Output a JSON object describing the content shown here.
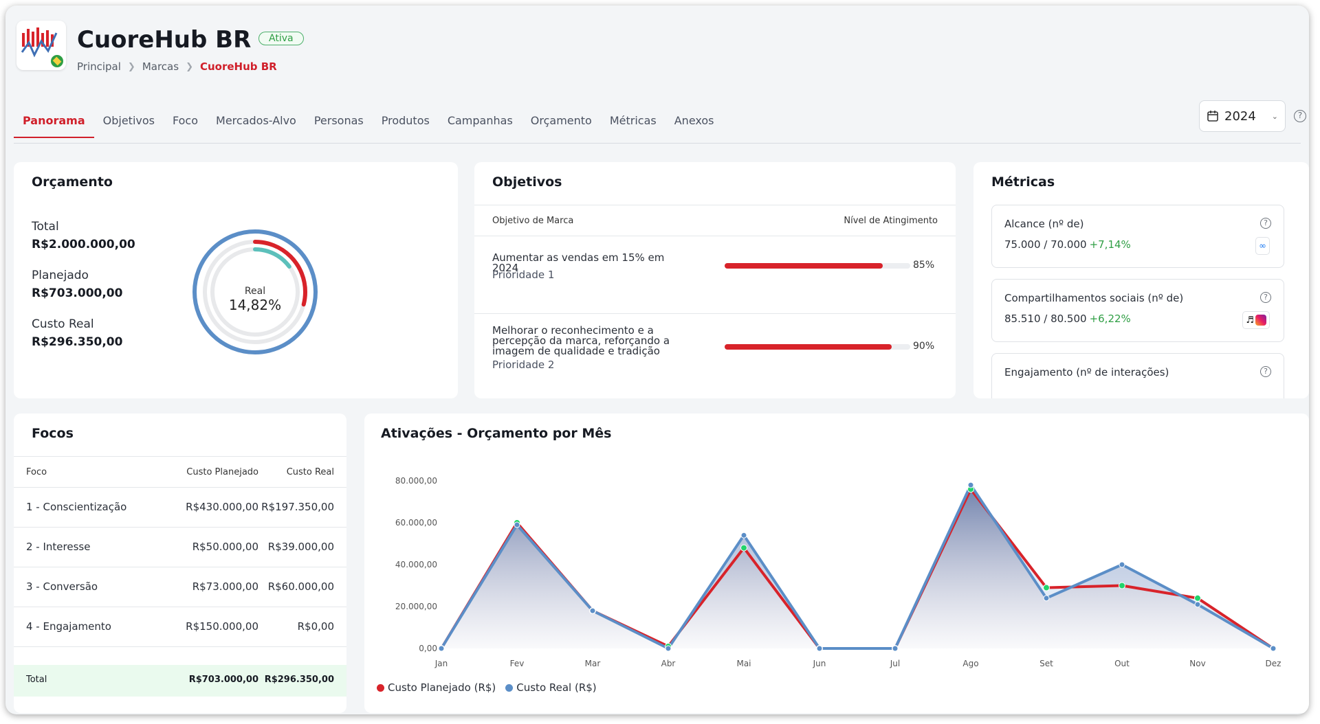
{
  "header": {
    "title": "CuoreHub BR",
    "status": "Ativa",
    "breadcrumb": [
      "Principal",
      "Marcas",
      "CuoreHub BR"
    ]
  },
  "tabs": [
    "Panorama",
    "Objetivos",
    "Foco",
    "Mercados-Alvo",
    "Personas",
    "Produtos",
    "Campanhas",
    "Orçamento",
    "Métricas",
    "Anexos"
  ],
  "active_tab": "Panorama",
  "year_select": "2024",
  "budget": {
    "title": "Orçamento",
    "total_label": "Total",
    "total_value": "R$2.000.000,00",
    "planned_label": "Planejado",
    "planned_value": "R$703.000,00",
    "real_label": "Custo Real",
    "real_value": "R$296.350,00",
    "donut_label": "Real",
    "donut_value": "14,82%",
    "donut_fraction": 0.1482
  },
  "objectives": {
    "title": "Objetivos",
    "col_objective": "Objetivo de Marca",
    "col_level": "Nível de Atingimento",
    "items": [
      {
        "text": "Aumentar as vendas em 15% em 2024",
        "priority": "Prioridade 1",
        "percent": 85,
        "percent_label": "85%"
      },
      {
        "text": "Melhorar o reconhecimento e a percepção da marca, reforçando a imagem de qualidade e tradição",
        "priority": "Prioridade 2",
        "percent": 90,
        "percent_label": "90%"
      }
    ]
  },
  "metrics": {
    "title": "Métricas",
    "items": [
      {
        "name": "Alcance (nº de)",
        "value": "75.000 / 70.000",
        "delta": "+7,14%",
        "platform": "meta-icon"
      },
      {
        "name": "Compartilhamentos sociais (nº de)",
        "value": "85.510 / 80.500",
        "delta": "+6,22%",
        "platform": "tiktok-instagram-icons"
      },
      {
        "name": "Engajamento (nº de interações)"
      }
    ]
  },
  "focos": {
    "title": "Focos",
    "columns": [
      "Foco",
      "Custo Planejado",
      "Custo Real"
    ],
    "rows": [
      [
        "1 - Conscientização",
        "R$430.000,00",
        "R$197.350,00"
      ],
      [
        "2 - Interesse",
        "R$50.000,00",
        "R$39.000,00"
      ],
      [
        "3 - Conversão",
        "R$73.000,00",
        "R$60.000,00"
      ],
      [
        "4 - Engajamento",
        "R$150.000,00",
        "R$0,00"
      ]
    ],
    "total": [
      "Total",
      "R$703.000,00",
      "R$296.350,00"
    ]
  },
  "chart_data": {
    "type": "area",
    "title": "Ativações -  Orçamento por Mês",
    "categories": [
      "Jan",
      "Fev",
      "Mar",
      "Abr",
      "Mai",
      "Jun",
      "Jul",
      "Ago",
      "Set",
      "Out",
      "Nov",
      "Dez"
    ],
    "y_ticks": [
      "0,00",
      "20.000,00",
      "40.000,00",
      "60.000,00",
      "80.000,00"
    ],
    "ylim": [
      0,
      80000
    ],
    "series": [
      {
        "name": "Custo Planejado (R$)",
        "color": "#d8232a",
        "values": [
          0,
          60000,
          18000,
          1000,
          48000,
          0,
          0,
          76000,
          29000,
          30000,
          24000,
          0
        ]
      },
      {
        "name": "Custo Real (R$)",
        "color": "#5b8ec7",
        "values": [
          0,
          59000,
          18000,
          0,
          54000,
          0,
          0,
          78000,
          24000,
          40000,
          21000,
          0
        ]
      }
    ],
    "legend": "bottom",
    "grid": false
  }
}
